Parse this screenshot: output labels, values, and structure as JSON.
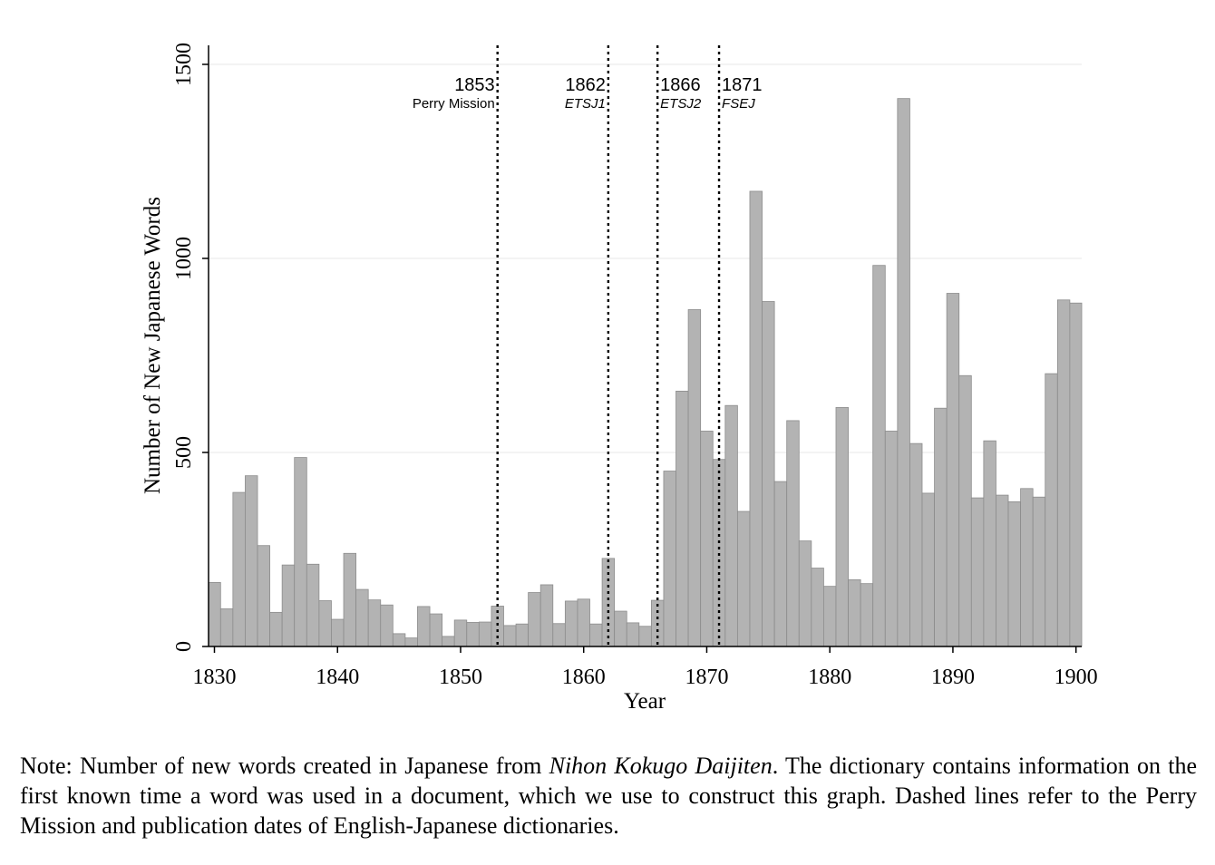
{
  "chart_data": {
    "type": "bar",
    "title": "",
    "xlabel": "Year",
    "ylabel": "Number of New Japanese Words",
    "xlim": [
      1829.5,
      1900.5
    ],
    "ylim": [
      0,
      1500
    ],
    "x_ticks": [
      "1830",
      "1840",
      "1850",
      "1860",
      "1870",
      "1880",
      "1890",
      "1900"
    ],
    "y_ticks": [
      "0",
      "500",
      "1000",
      "1500"
    ],
    "grid": "horizontal",
    "legend": "none",
    "bar_color": "#b3b3b3",
    "bar_edge_color": "#8c8c8c",
    "x": [
      1830,
      1831,
      1832,
      1833,
      1834,
      1835,
      1836,
      1837,
      1838,
      1839,
      1840,
      1841,
      1842,
      1843,
      1844,
      1845,
      1846,
      1847,
      1848,
      1849,
      1850,
      1851,
      1852,
      1853,
      1854,
      1855,
      1856,
      1857,
      1858,
      1859,
      1860,
      1861,
      1862,
      1863,
      1864,
      1865,
      1866,
      1867,
      1868,
      1869,
      1870,
      1871,
      1872,
      1873,
      1874,
      1875,
      1876,
      1877,
      1878,
      1879,
      1880,
      1881,
      1882,
      1883,
      1884,
      1885,
      1886,
      1887,
      1888,
      1889,
      1890,
      1891,
      1892,
      1893,
      1894,
      1895,
      1896,
      1897,
      1898,
      1899,
      1900
    ],
    "values": [
      165,
      97,
      397,
      440,
      260,
      88,
      210,
      487,
      212,
      118,
      70,
      240,
      147,
      120,
      107,
      33,
      22,
      103,
      84,
      26,
      68,
      62,
      63,
      104,
      54,
      58,
      139,
      159,
      59,
      117,
      122,
      58,
      227,
      91,
      61,
      52,
      119,
      452,
      658,
      868,
      555,
      482,
      621,
      348,
      1173,
      889,
      425,
      582,
      272,
      202,
      155,
      616,
      172,
      162,
      982,
      555,
      1412,
      523,
      395,
      614,
      910,
      698,
      383,
      530,
      390,
      373,
      407,
      385,
      703,
      893,
      885
    ],
    "reference_lines": [
      {
        "x": 1853,
        "year_label": "1853",
        "name": "Perry Mission",
        "italic": false
      },
      {
        "x": 1862,
        "year_label": "1862",
        "name": "ETSJ1",
        "italic": true
      },
      {
        "x": 1866,
        "year_label": "1866",
        "name": "ETSJ2",
        "italic": true
      },
      {
        "x": 1871,
        "year_label": "1871",
        "name": "FSEJ",
        "italic": true
      }
    ]
  },
  "note": {
    "prefix": "Note:  Number of new words created in Japanese from ",
    "italic": "Nihon Kokugo Daijiten",
    "suffix": ".  The dictionary contains information on the first known time a word was used in a document, which we use to construct this graph. Dashed lines refer to the Perry Mission and publication dates of English-Japanese dictionaries."
  }
}
